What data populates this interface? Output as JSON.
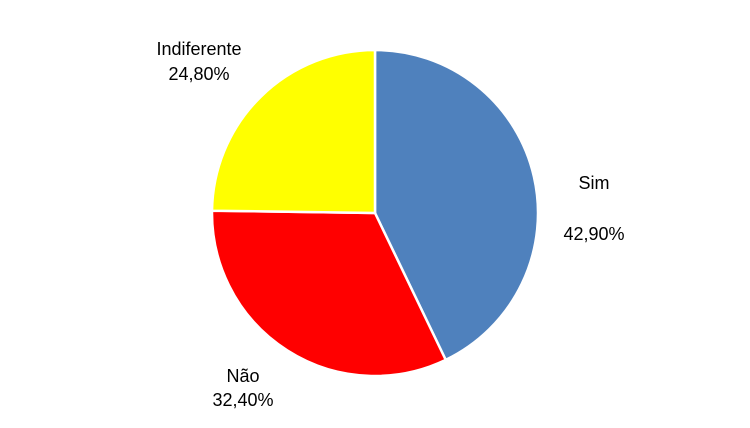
{
  "chart_data": {
    "type": "pie",
    "categories": [
      "Sim",
      "Não",
      "Indiferente"
    ],
    "values": [
      42.9,
      32.4,
      24.8
    ],
    "value_labels": [
      "42,90%",
      "32,40%",
      "24,80%"
    ],
    "colors": [
      "#4f81bd",
      "#ff0000",
      "#ffff00"
    ]
  }
}
